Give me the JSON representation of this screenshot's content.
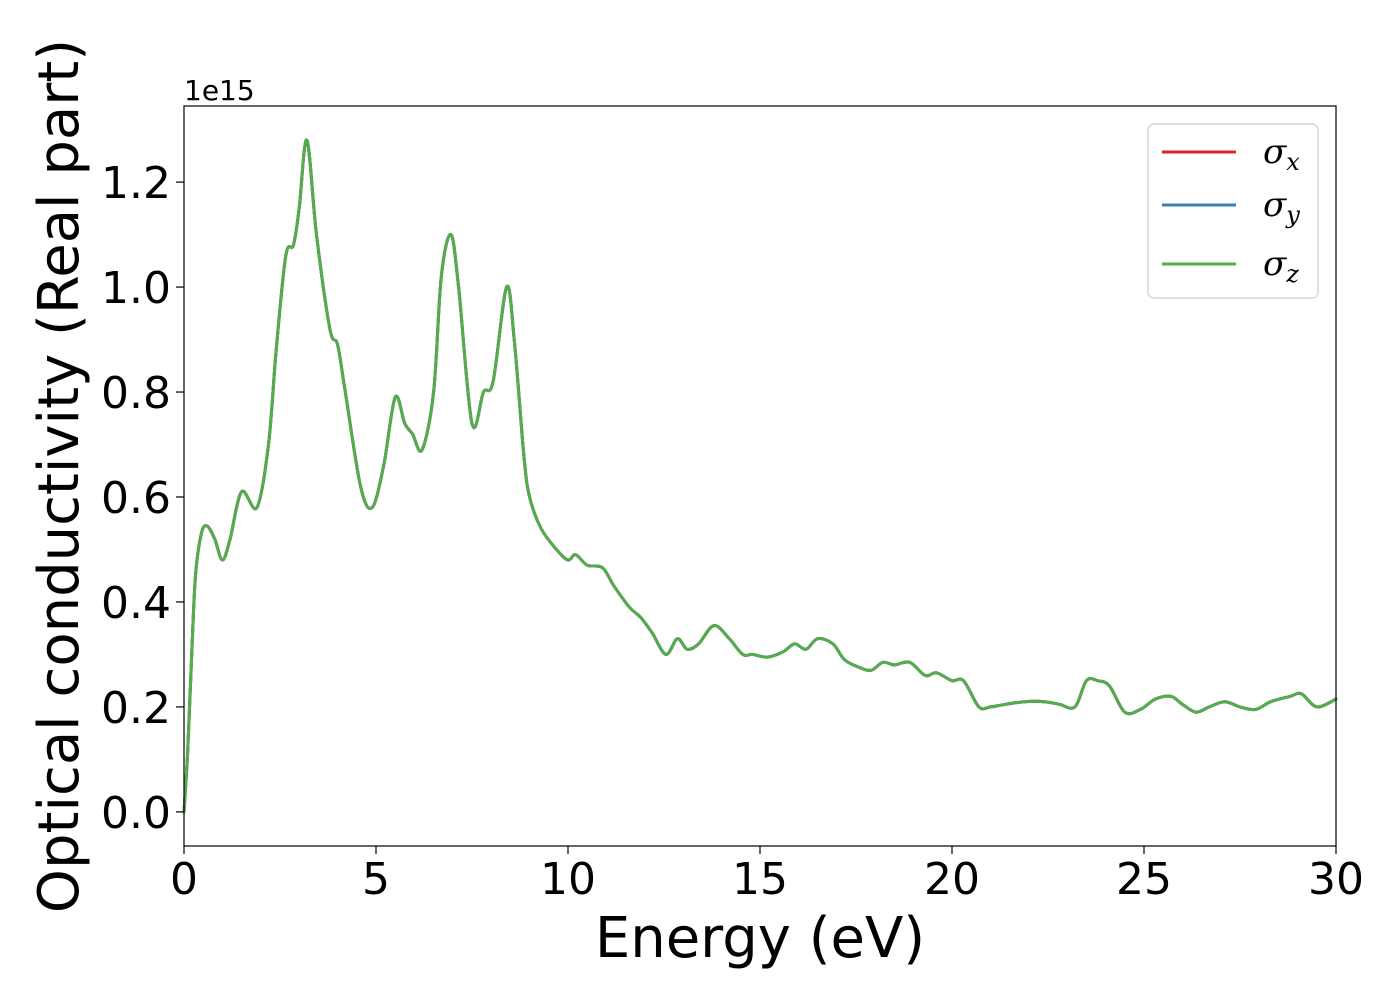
{
  "chart_data": {
    "type": "line",
    "title": "",
    "xlabel": "Energy (eV)",
    "ylabel": "Optical conductivity (Real part)",
    "y_offset_label": "1e15",
    "xlim": [
      0,
      30
    ],
    "ylim": [
      -0.065,
      1.345
    ],
    "x_ticks": [
      0,
      5,
      10,
      15,
      20,
      25,
      30
    ],
    "x_tick_labels": [
      "0",
      "5",
      "10",
      "15",
      "20",
      "25",
      "30"
    ],
    "y_ticks": [
      0.0,
      0.2,
      0.4,
      0.6,
      0.8,
      1.0,
      1.2
    ],
    "y_tick_labels": [
      "0.0",
      "0.2",
      "0.4",
      "0.6",
      "0.8",
      "1.0",
      "1.2"
    ],
    "grid": false,
    "legend_position": "top-right",
    "series": [
      {
        "name": "σx",
        "symbol": "σ",
        "subscript": "x",
        "color": "#d62728"
      },
      {
        "name": "σy",
        "symbol": "σ",
        "subscript": "y",
        "color": "#3a7fb8"
      },
      {
        "name": "σz",
        "symbol": "σ",
        "subscript": "z",
        "color": "#55ac4c"
      }
    ],
    "x": [
      0,
      0.1,
      0.2,
      0.3,
      0.45,
      0.6,
      0.8,
      1.0,
      1.2,
      1.5,
      1.9,
      2.2,
      2.4,
      2.65,
      2.85,
      3.0,
      3.2,
      3.45,
      3.8,
      4.0,
      4.2,
      4.6,
      4.9,
      5.2,
      5.5,
      5.75,
      5.95,
      6.2,
      6.5,
      6.7,
      6.95,
      7.15,
      7.5,
      7.8,
      8.05,
      8.4,
      8.6,
      8.85,
      9.0,
      9.3,
      9.7,
      10.0,
      10.2,
      10.5,
      10.9,
      11.2,
      11.6,
      11.9,
      12.2,
      12.55,
      12.85,
      13.1,
      13.4,
      13.8,
      14.2,
      14.55,
      14.8,
      15.2,
      15.6,
      15.9,
      16.2,
      16.5,
      16.9,
      17.2,
      17.6,
      17.9,
      18.2,
      18.5,
      18.9,
      19.3,
      19.6,
      20.0,
      20.3,
      20.7,
      21.0,
      21.4,
      21.9,
      22.4,
      22.8,
      23.2,
      23.5,
      23.8,
      24.1,
      24.5,
      24.9,
      25.3,
      25.7,
      26.0,
      26.35,
      26.7,
      27.1,
      27.5,
      27.9,
      28.3,
      28.8,
      29.1,
      29.5,
      30.0
    ],
    "values": {
      "σx": [
        0.0,
        0.12,
        0.3,
        0.45,
        0.53,
        0.545,
        0.52,
        0.48,
        0.52,
        0.61,
        0.58,
        0.7,
        0.88,
        1.06,
        1.08,
        1.15,
        1.28,
        1.1,
        0.92,
        0.89,
        0.8,
        0.62,
        0.58,
        0.66,
        0.79,
        0.74,
        0.72,
        0.69,
        0.8,
        1.02,
        1.1,
        1.0,
        0.74,
        0.8,
        0.82,
        1.0,
        0.9,
        0.68,
        0.6,
        0.54,
        0.5,
        0.48,
        0.49,
        0.47,
        0.465,
        0.43,
        0.39,
        0.37,
        0.34,
        0.3,
        0.33,
        0.31,
        0.32,
        0.355,
        0.33,
        0.3,
        0.3,
        0.295,
        0.305,
        0.32,
        0.31,
        0.33,
        0.32,
        0.29,
        0.275,
        0.27,
        0.285,
        0.28,
        0.285,
        0.26,
        0.265,
        0.25,
        0.25,
        0.2,
        0.2,
        0.205,
        0.21,
        0.21,
        0.205,
        0.2,
        0.25,
        0.25,
        0.24,
        0.19,
        0.195,
        0.215,
        0.22,
        0.205,
        0.19,
        0.2,
        0.21,
        0.2,
        0.195,
        0.21,
        0.22,
        0.225,
        0.2,
        0.215
      ],
      "σy": [
        0.0,
        0.12,
        0.3,
        0.45,
        0.53,
        0.545,
        0.52,
        0.48,
        0.52,
        0.61,
        0.58,
        0.7,
        0.88,
        1.06,
        1.08,
        1.15,
        1.28,
        1.1,
        0.92,
        0.89,
        0.8,
        0.62,
        0.58,
        0.66,
        0.79,
        0.74,
        0.72,
        0.69,
        0.8,
        1.02,
        1.1,
        1.0,
        0.74,
        0.8,
        0.82,
        1.0,
        0.9,
        0.68,
        0.6,
        0.54,
        0.5,
        0.48,
        0.49,
        0.47,
        0.465,
        0.43,
        0.39,
        0.37,
        0.34,
        0.3,
        0.33,
        0.31,
        0.32,
        0.355,
        0.33,
        0.3,
        0.3,
        0.295,
        0.305,
        0.32,
        0.31,
        0.33,
        0.32,
        0.29,
        0.275,
        0.27,
        0.285,
        0.28,
        0.285,
        0.26,
        0.265,
        0.25,
        0.25,
        0.2,
        0.2,
        0.205,
        0.21,
        0.21,
        0.205,
        0.2,
        0.25,
        0.25,
        0.24,
        0.19,
        0.195,
        0.215,
        0.22,
        0.205,
        0.19,
        0.2,
        0.21,
        0.2,
        0.195,
        0.21,
        0.22,
        0.225,
        0.2,
        0.215
      ],
      "σz": [
        0.0,
        0.12,
        0.3,
        0.45,
        0.53,
        0.545,
        0.52,
        0.48,
        0.52,
        0.61,
        0.58,
        0.7,
        0.88,
        1.06,
        1.08,
        1.15,
        1.28,
        1.1,
        0.92,
        0.89,
        0.8,
        0.62,
        0.58,
        0.66,
        0.79,
        0.74,
        0.72,
        0.69,
        0.8,
        1.02,
        1.1,
        1.0,
        0.74,
        0.8,
        0.82,
        1.0,
        0.9,
        0.68,
        0.6,
        0.54,
        0.5,
        0.48,
        0.49,
        0.47,
        0.465,
        0.43,
        0.39,
        0.37,
        0.34,
        0.3,
        0.33,
        0.31,
        0.32,
        0.355,
        0.33,
        0.3,
        0.3,
        0.295,
        0.305,
        0.32,
        0.31,
        0.33,
        0.32,
        0.29,
        0.275,
        0.27,
        0.285,
        0.28,
        0.285,
        0.26,
        0.265,
        0.25,
        0.25,
        0.2,
        0.2,
        0.205,
        0.21,
        0.21,
        0.205,
        0.2,
        0.25,
        0.25,
        0.24,
        0.19,
        0.195,
        0.215,
        0.22,
        0.205,
        0.19,
        0.2,
        0.21,
        0.2,
        0.195,
        0.21,
        0.22,
        0.225,
        0.2,
        0.215
      ]
    }
  }
}
